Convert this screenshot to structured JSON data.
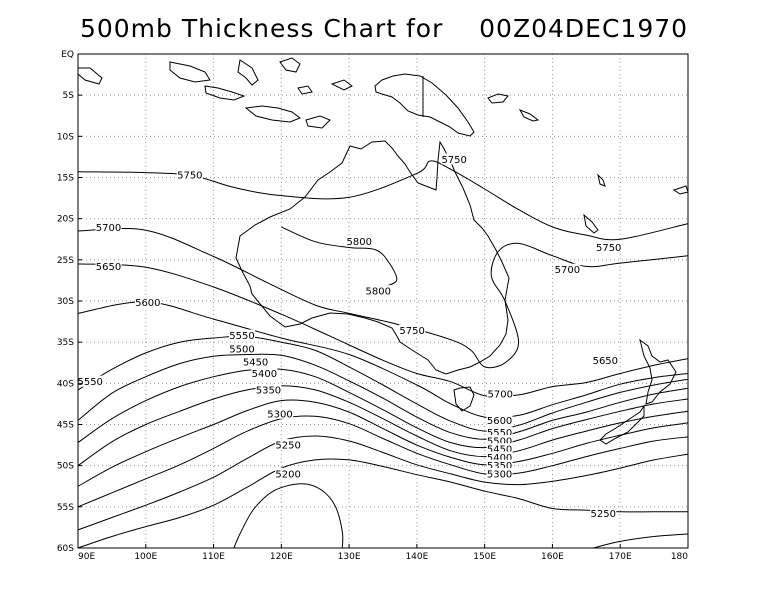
{
  "chart": {
    "title": "500mb Thickness Chart for    00Z04DEC1970",
    "lat_labels": [
      "EQ",
      "5S",
      "10S",
      "15S",
      "20S",
      "25S",
      "30S",
      "35S",
      "40S",
      "45S",
      "50S",
      "55S",
      "60S"
    ],
    "lon_labels": [
      "90E",
      "100E",
      "110E",
      "120E",
      "130E",
      "140E",
      "150E",
      "160E",
      "170E",
      "180"
    ]
  },
  "chart_data": {
    "type": "contour",
    "title": "500mb Thickness Chart for    00Z04DEC1970",
    "lat_range": [
      -60,
      0
    ],
    "lon_range": [
      90,
      180
    ],
    "grid": true,
    "contour_levels": [
      5200,
      5250,
      5300,
      5350,
      5400,
      5450,
      5500,
      5550,
      5600,
      5650,
      5700,
      5750,
      5800
    ],
    "contours": [
      {
        "value": 5750,
        "points": [
          [
            90,
            -14.3
          ],
          [
            100,
            -14.4
          ],
          [
            107,
            -14.8
          ],
          [
            113,
            -16.2
          ],
          [
            120,
            -17.2
          ],
          [
            130,
            -17.4
          ],
          [
            140,
            -14.5
          ],
          [
            142,
            -13
          ],
          [
            145,
            -14
          ],
          [
            150,
            -16.4
          ],
          [
            155,
            -18.9
          ],
          [
            160,
            -21
          ],
          [
            165,
            -22
          ],
          [
            170,
            -22.5
          ],
          [
            180,
            -20.6
          ]
        ]
      },
      {
        "value": 5800,
        "points": [
          [
            120,
            -21
          ],
          [
            125,
            -22.8
          ],
          [
            130,
            -23.5
          ],
          [
            134,
            -23.8
          ],
          [
            136,
            -25.5
          ],
          [
            137,
            -27.5
          ],
          [
            135,
            -28.3
          ]
        ]
      },
      {
        "value": 5750,
        "points": [
          [
            90,
            -21.5
          ],
          [
            100,
            -21.4
          ],
          [
            110,
            -24.6
          ],
          [
            118,
            -27.8
          ],
          [
            125,
            -30.5
          ],
          [
            130,
            -31.5
          ],
          [
            137,
            -32.8
          ],
          [
            145,
            -34.7
          ],
          [
            148,
            -36
          ],
          [
            150,
            -38
          ],
          [
            153,
            -37.5
          ],
          [
            155,
            -35
          ],
          [
            153,
            -30
          ],
          [
            151,
            -27
          ],
          [
            152,
            -24
          ],
          [
            155,
            -23
          ],
          [
            160,
            -24.5
          ],
          [
            165,
            -25.8
          ],
          [
            170,
            -25.4
          ],
          [
            180,
            -24.5
          ]
        ]
      },
      {
        "value": 5700,
        "points": [
          [
            90,
            -25.5
          ],
          [
            100,
            -25.9
          ],
          [
            110,
            -28.3
          ],
          [
            120,
            -31.6
          ],
          [
            127,
            -34.2
          ],
          [
            135,
            -37.2
          ],
          [
            140,
            -38.8
          ],
          [
            145,
            -39.8
          ],
          [
            150,
            -41.5
          ],
          [
            155,
            -41.4
          ],
          [
            160,
            -40.4
          ],
          [
            165,
            -39.9
          ],
          [
            170,
            -38.8
          ],
          [
            175,
            -37.8
          ],
          [
            180,
            -37
          ]
        ]
      },
      {
        "value": 5650,
        "points": [
          [
            90,
            -31.5
          ],
          [
            100,
            -30.1
          ],
          [
            110,
            -32.2
          ],
          [
            120,
            -34.5
          ],
          [
            130,
            -36.5
          ],
          [
            140,
            -40.2
          ],
          [
            145,
            -42.5
          ],
          [
            150,
            -44.1
          ],
          [
            155,
            -43.9
          ],
          [
            160,
            -42.6
          ],
          [
            165,
            -41.4
          ],
          [
            170,
            -40.1
          ],
          [
            175,
            -39.3
          ],
          [
            180,
            -38.8
          ]
        ]
      },
      {
        "value": 5600,
        "points": [
          [
            90,
            -40.8
          ],
          [
            95,
            -38.3
          ],
          [
            100,
            -36.3
          ],
          [
            105,
            -35
          ],
          [
            110,
            -34.5
          ],
          [
            115,
            -34.3
          ],
          [
            120,
            -35
          ],
          [
            125,
            -36
          ],
          [
            130,
            -38
          ],
          [
            135,
            -40.2
          ],
          [
            140,
            -42.5
          ],
          [
            145,
            -44.6
          ],
          [
            150,
            -45.8
          ],
          [
            155,
            -45.1
          ],
          [
            160,
            -43.6
          ],
          [
            165,
            -42.3
          ],
          [
            170,
            -41.1
          ],
          [
            175,
            -40.2
          ],
          [
            180,
            -39.5
          ]
        ]
      },
      {
        "value": 5550,
        "points": [
          [
            90,
            -44.5
          ],
          [
            95,
            -41.2
          ],
          [
            100,
            -39.2
          ],
          [
            105,
            -37.6
          ],
          [
            110,
            -36.7
          ],
          [
            115,
            -36.5
          ],
          [
            120,
            -36.6
          ],
          [
            125,
            -37.8
          ],
          [
            130,
            -39.7
          ],
          [
            135,
            -41.8
          ],
          [
            140,
            -44.1
          ],
          [
            145,
            -46
          ],
          [
            150,
            -46.8
          ],
          [
            155,
            -45.9
          ],
          [
            160,
            -44.5
          ],
          [
            165,
            -43.5
          ],
          [
            170,
            -42.3
          ],
          [
            175,
            -41.3
          ],
          [
            180,
            -40.6
          ]
        ]
      },
      {
        "value": 5500,
        "points": [
          [
            90,
            -47.2
          ],
          [
            95,
            -44.3
          ],
          [
            100,
            -42.1
          ],
          [
            105,
            -40.4
          ],
          [
            110,
            -39.2
          ],
          [
            115,
            -38.4
          ],
          [
            120,
            -38.3
          ],
          [
            125,
            -39.2
          ],
          [
            130,
            -41.1
          ],
          [
            135,
            -43.2
          ],
          [
            140,
            -45.4
          ],
          [
            145,
            -47.2
          ],
          [
            150,
            -47.8
          ],
          [
            155,
            -46.9
          ],
          [
            160,
            -45.5
          ],
          [
            165,
            -44.4
          ],
          [
            170,
            -43.4
          ],
          [
            175,
            -42.5
          ],
          [
            180,
            -41.9
          ]
        ]
      },
      {
        "value": 5450,
        "points": [
          [
            90,
            -50
          ],
          [
            95,
            -47.1
          ],
          [
            100,
            -45
          ],
          [
            105,
            -43.4
          ],
          [
            110,
            -41.9
          ],
          [
            115,
            -40.8
          ],
          [
            120,
            -40.3
          ],
          [
            125,
            -40.8
          ],
          [
            130,
            -42.3
          ],
          [
            135,
            -44.3
          ],
          [
            140,
            -46.4
          ],
          [
            145,
            -48.2
          ],
          [
            150,
            -48.9
          ],
          [
            155,
            -48.2
          ],
          [
            160,
            -46.9
          ],
          [
            165,
            -45.8
          ],
          [
            170,
            -44.8
          ],
          [
            175,
            -44
          ],
          [
            180,
            -43.4
          ]
        ]
      },
      {
        "value": 5400,
        "points": [
          [
            90,
            -52.5
          ],
          [
            95,
            -50.2
          ],
          [
            100,
            -48.3
          ],
          [
            105,
            -46.6
          ],
          [
            110,
            -45
          ],
          [
            115,
            -43.3
          ],
          [
            120,
            -42.1
          ],
          [
            125,
            -42.3
          ],
          [
            130,
            -43.5
          ],
          [
            135,
            -45.5
          ],
          [
            140,
            -47.5
          ],
          [
            145,
            -49
          ],
          [
            150,
            -49.9
          ],
          [
            155,
            -49.5
          ],
          [
            160,
            -48.5
          ],
          [
            165,
            -47.3
          ],
          [
            170,
            -46.3
          ],
          [
            175,
            -45.4
          ],
          [
            180,
            -44.8
          ]
        ]
      },
      {
        "value": 5350,
        "points": [
          [
            90,
            -55
          ],
          [
            95,
            -53.3
          ],
          [
            100,
            -51.6
          ],
          [
            105,
            -49.9
          ],
          [
            110,
            -47.9
          ],
          [
            115,
            -45.8
          ],
          [
            120,
            -44.3
          ],
          [
            125,
            -44
          ],
          [
            130,
            -44.9
          ],
          [
            135,
            -46.7
          ],
          [
            140,
            -48.5
          ],
          [
            145,
            -49.9
          ],
          [
            150,
            -51
          ],
          [
            155,
            -50.9
          ],
          [
            160,
            -50
          ],
          [
            165,
            -48.9
          ],
          [
            170,
            -47.9
          ],
          [
            175,
            -47
          ],
          [
            180,
            -46.5
          ]
        ]
      },
      {
        "value": 5300,
        "points": [
          [
            90,
            -57.8
          ],
          [
            95,
            -56.3
          ],
          [
            100,
            -54.8
          ],
          [
            105,
            -53.2
          ],
          [
            110,
            -51.4
          ],
          [
            115,
            -49.1
          ],
          [
            120,
            -47
          ],
          [
            125,
            -46.4
          ],
          [
            130,
            -47
          ],
          [
            135,
            -48.4
          ],
          [
            140,
            -49.9
          ],
          [
            145,
            -51
          ],
          [
            150,
            -52
          ],
          [
            155,
            -52.3
          ],
          [
            160,
            -51.9
          ],
          [
            165,
            -51.2
          ],
          [
            170,
            -50.3
          ],
          [
            175,
            -49.3
          ],
          [
            180,
            -48.6
          ]
        ]
      },
      {
        "value": 5250,
        "points": [
          [
            90,
            -60
          ],
          [
            95,
            -58.6
          ],
          [
            100,
            -57.4
          ],
          [
            105,
            -56.3
          ],
          [
            110,
            -54.8
          ],
          [
            115,
            -52.6
          ],
          [
            120,
            -50.3
          ],
          [
            125,
            -49.3
          ],
          [
            130,
            -49.3
          ],
          [
            135,
            -50.1
          ],
          [
            140,
            -51.1
          ],
          [
            145,
            -52
          ],
          [
            150,
            -53.1
          ],
          [
            155,
            -54
          ],
          [
            160,
            -55.2
          ],
          [
            165,
            -55.4
          ],
          [
            170,
            -55.6
          ],
          [
            175,
            -55.6
          ],
          [
            180,
            -55.6
          ]
        ]
      },
      {
        "value": 5200,
        "points": [
          [
            113,
            -60
          ],
          [
            114,
            -58.1
          ],
          [
            116,
            -55.2
          ],
          [
            119,
            -53
          ],
          [
            123,
            -52.2
          ],
          [
            126,
            -53
          ],
          [
            128,
            -55
          ],
          [
            129,
            -58
          ],
          [
            129,
            -60
          ]
        ]
      },
      {
        "value": 5200,
        "points": [
          [
            166,
            -60
          ],
          [
            170,
            -59.2
          ],
          [
            175,
            -58.6
          ],
          [
            180,
            -58.3
          ]
        ]
      }
    ],
    "contour_labels": [
      {
        "text": "5750",
        "lon": 106.5,
        "lat": -14.7
      },
      {
        "text": "5750",
        "lon": 145.5,
        "lat": -12.8
      },
      {
        "text": "5750",
        "lon": 168.3,
        "lat": -23.5
      },
      {
        "text": "5750",
        "lon": 139.3,
        "lat": -33.6
      },
      {
        "text": "5800",
        "lon": 131.5,
        "lat": -22.8
      },
      {
        "text": "5800",
        "lon": 134.3,
        "lat": -28.8
      },
      {
        "text": "5700",
        "lon": 94.5,
        "lat": -21.1
      },
      {
        "text": "5700",
        "lon": 152.3,
        "lat": -41.3
      },
      {
        "text": "5700",
        "lon": 162.2,
        "lat": -26.2
      },
      {
        "text": "5650",
        "lon": 94.5,
        "lat": -25.8
      },
      {
        "text": "5650",
        "lon": 167.8,
        "lat": -37.2
      },
      {
        "text": "5600",
        "lon": 100.3,
        "lat": -30.2
      },
      {
        "text": "5600",
        "lon": 152.2,
        "lat": -44.5
      },
      {
        "text": "5550",
        "lon": 91.8,
        "lat": -39.8
      },
      {
        "text": "5550",
        "lon": 114.2,
        "lat": -34.2
      },
      {
        "text": "5550",
        "lon": 152.2,
        "lat": -46.0
      },
      {
        "text": "5500",
        "lon": 114.2,
        "lat": -35.8
      },
      {
        "text": "5500",
        "lon": 152.2,
        "lat": -47.0
      },
      {
        "text": "5450",
        "lon": 116.2,
        "lat": -37.4
      },
      {
        "text": "5450",
        "lon": 152.2,
        "lat": -48.0
      },
      {
        "text": "5400",
        "lon": 117.5,
        "lat": -38.8
      },
      {
        "text": "5400",
        "lon": 152.2,
        "lat": -49.0
      },
      {
        "text": "5350",
        "lon": 118.1,
        "lat": -40.8
      },
      {
        "text": "5350",
        "lon": 152.2,
        "lat": -50.0
      },
      {
        "text": "5300",
        "lon": 119.8,
        "lat": -43.7
      },
      {
        "text": "5300",
        "lon": 152.2,
        "lat": -51.0
      },
      {
        "text": "5250",
        "lon": 121.0,
        "lat": -47.5
      },
      {
        "text": "5250",
        "lon": 167.5,
        "lat": -55.8
      },
      {
        "text": "5200",
        "lon": 121.0,
        "lat": -51.0
      }
    ]
  }
}
